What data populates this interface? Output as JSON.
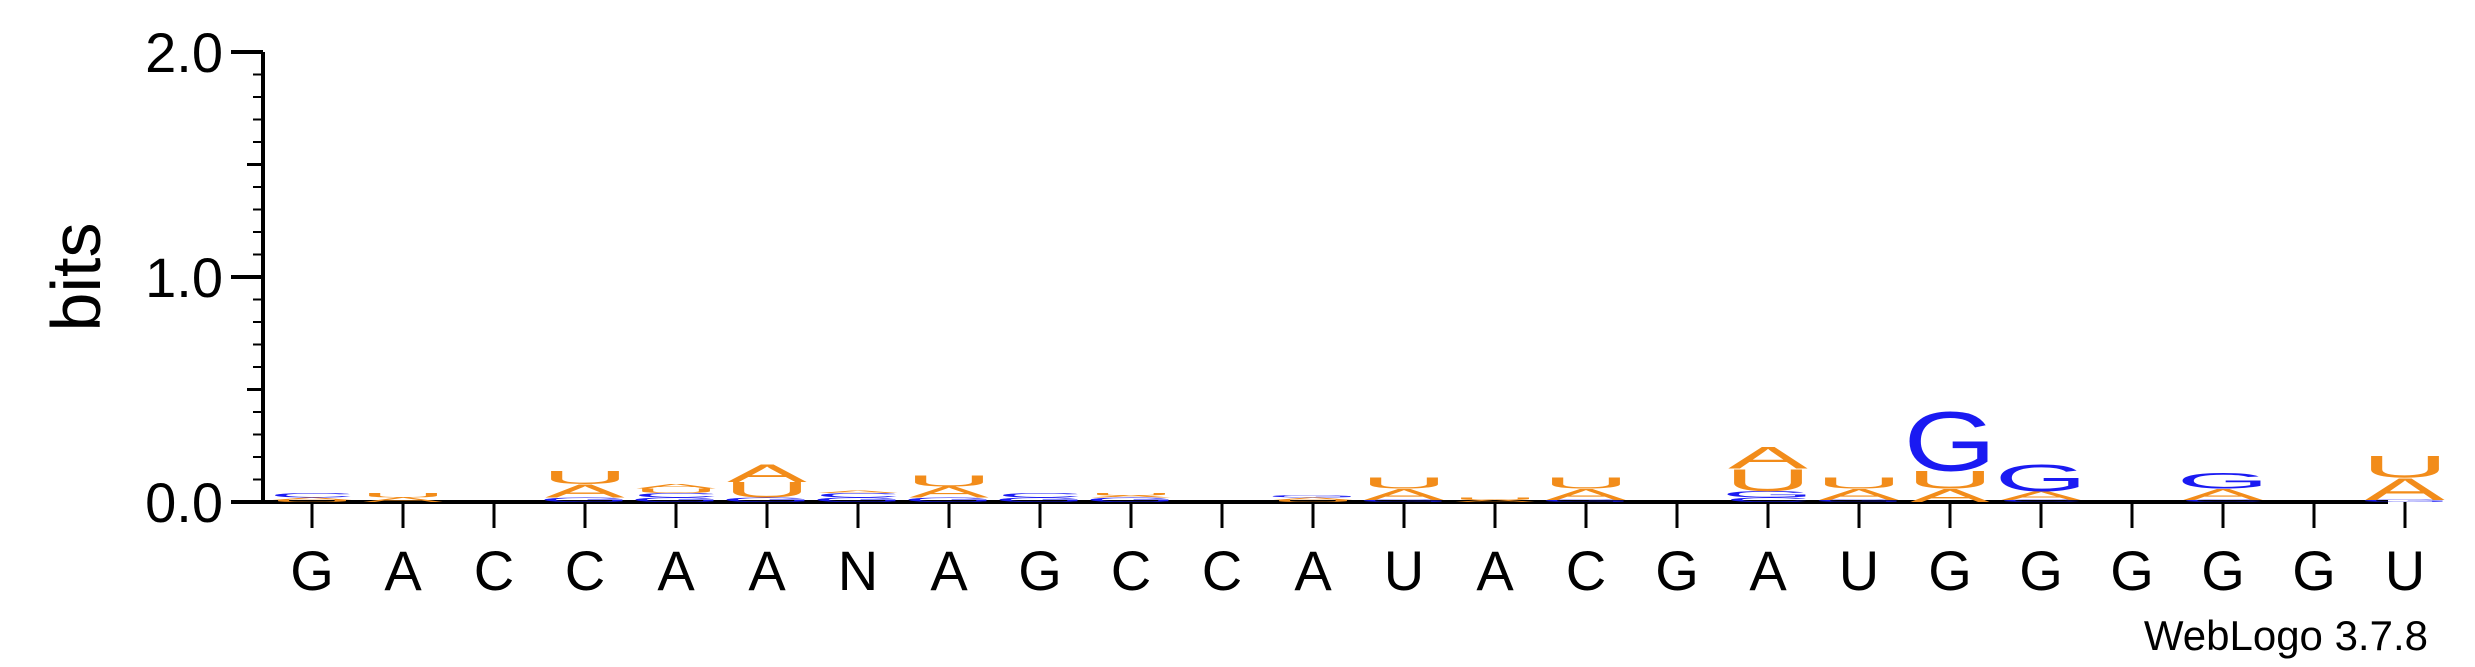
{
  "chart_data": {
    "type": "sequence_logo",
    "ylabel": "bits",
    "ylim": [
      0,
      2.0
    ],
    "yticks": [
      "0.0",
      "1.0",
      "2.0"
    ],
    "yticks_values": [
      0.0,
      1.0,
      2.0
    ],
    "positions": [
      "G",
      "A",
      "C",
      "C",
      "A",
      "A",
      "N",
      "A",
      "G",
      "C",
      "C",
      "A",
      "U",
      "A",
      "C",
      "G",
      "A",
      "U",
      "G",
      "G",
      "G",
      "G",
      "G",
      "U"
    ],
    "colors": {
      "A": "#f28c1a",
      "U": "#f28c1a",
      "G": "#1a1af2",
      "C": "#1a1af2",
      "N": "#000000"
    },
    "stacks": [
      [
        {
          "letter": "U",
          "bits": 0.01
        },
        {
          "letter": "A",
          "bits": 0.01
        },
        {
          "letter": "C",
          "bits": 0.02
        }
      ],
      [
        {
          "letter": "A",
          "bits": 0.02
        },
        {
          "letter": "U",
          "bits": 0.02
        }
      ],
      [],
      [
        {
          "letter": "G",
          "bits": 0.02
        },
        {
          "letter": "A",
          "bits": 0.06
        },
        {
          "letter": "U",
          "bits": 0.06
        }
      ],
      [
        {
          "letter": "G",
          "bits": 0.02
        },
        {
          "letter": "C",
          "bits": 0.02
        },
        {
          "letter": "U",
          "bits": 0.02
        },
        {
          "letter": "A",
          "bits": 0.02
        }
      ],
      [
        {
          "letter": "G",
          "bits": 0.02
        },
        {
          "letter": "U",
          "bits": 0.07
        },
        {
          "letter": "A",
          "bits": 0.08
        }
      ],
      [
        {
          "letter": "G",
          "bits": 0.02
        },
        {
          "letter": "C",
          "bits": 0.02
        },
        {
          "letter": "A",
          "bits": 0.01
        }
      ],
      [
        {
          "letter": "G",
          "bits": 0.02
        },
        {
          "letter": "A",
          "bits": 0.05
        },
        {
          "letter": "U",
          "bits": 0.05
        }
      ],
      [
        {
          "letter": "G",
          "bits": 0.02
        },
        {
          "letter": "C",
          "bits": 0.02
        }
      ],
      [
        {
          "letter": "G",
          "bits": 0.02
        },
        {
          "letter": "A",
          "bits": 0.01
        },
        {
          "letter": "U",
          "bits": 0.01
        }
      ],
      [],
      [
        {
          "letter": "U",
          "bits": 0.01
        },
        {
          "letter": "A",
          "bits": 0.01
        },
        {
          "letter": "G",
          "bits": 0.01
        }
      ],
      [
        {
          "letter": "G",
          "bits": 0.01
        },
        {
          "letter": "A",
          "bits": 0.05
        },
        {
          "letter": "U",
          "bits": 0.05
        }
      ],
      [
        {
          "letter": "A",
          "bits": 0.01
        },
        {
          "letter": "U",
          "bits": 0.01
        }
      ],
      [
        {
          "letter": "G",
          "bits": 0.01
        },
        {
          "letter": "A",
          "bits": 0.05
        },
        {
          "letter": "U",
          "bits": 0.05
        }
      ],
      [],
      [
        {
          "letter": "C",
          "bits": 0.02
        },
        {
          "letter": "G",
          "bits": 0.03
        },
        {
          "letter": "U",
          "bits": 0.1
        },
        {
          "letter": "A",
          "bits": 0.1
        }
      ],
      [
        {
          "letter": "G",
          "bits": 0.01
        },
        {
          "letter": "A",
          "bits": 0.05
        },
        {
          "letter": "U",
          "bits": 0.05
        }
      ],
      [
        {
          "letter": "A",
          "bits": 0.06
        },
        {
          "letter": "U",
          "bits": 0.08
        },
        {
          "letter": "G",
          "bits": 0.27
        }
      ],
      [
        {
          "letter": "C",
          "bits": 0.01
        },
        {
          "letter": "A",
          "bits": 0.04
        },
        {
          "letter": "G",
          "bits": 0.12
        }
      ],
      [],
      [
        {
          "letter": "C",
          "bits": 0.01
        },
        {
          "letter": "A",
          "bits": 0.05
        },
        {
          "letter": "G",
          "bits": 0.07
        }
      ],
      [],
      [
        {
          "letter": "G",
          "bits": 0.01
        },
        {
          "letter": "A",
          "bits": 0.1
        },
        {
          "letter": "U",
          "bits": 0.1
        }
      ]
    ]
  },
  "branding": "WebLogo 3.7.8"
}
